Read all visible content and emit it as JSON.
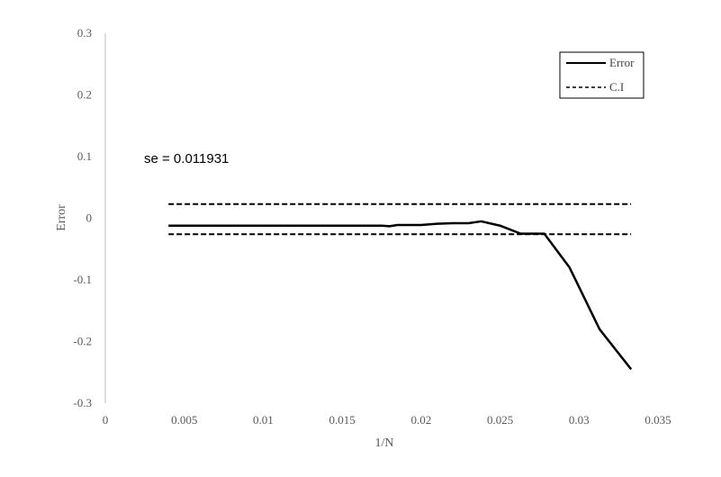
{
  "chart_data": {
    "type": "line",
    "xlabel": "1/N",
    "ylabel": "Error",
    "xlim": [
      0,
      0.035
    ],
    "ylim": [
      -0.3,
      0.3
    ],
    "x_ticks": [
      "0",
      "0.005",
      "0.01",
      "0.015",
      "0.02",
      "0.025",
      "0.03",
      "0.035"
    ],
    "y_ticks": [
      "-0.3",
      "-0.2",
      "-0.1",
      "0",
      "0.1",
      "0.2",
      "0.3"
    ],
    "grid": false,
    "legend_position": "top-right",
    "annotation": "se =  0.011931",
    "series": [
      {
        "name": "Error",
        "style": "solid",
        "color": "#000000",
        "x": [
          0.004,
          0.0175,
          0.018,
          0.0185,
          0.019,
          0.02,
          0.021,
          0.022,
          0.023,
          0.0238,
          0.025,
          0.0263,
          0.0278,
          0.0294,
          0.0313,
          0.0333
        ],
        "y": [
          -0.012,
          -0.012,
          -0.013,
          -0.011,
          -0.011,
          -0.011,
          -0.009,
          -0.008,
          -0.008,
          -0.005,
          -0.012,
          -0.025,
          -0.025,
          -0.08,
          -0.18,
          -0.245
        ]
      },
      {
        "name": "C.I",
        "style": "dashed",
        "color": "#000000",
        "upper": {
          "x": [
            0.004,
            0.0333
          ],
          "y": [
            0.023,
            0.023
          ]
        },
        "lower": {
          "x": [
            0.004,
            0.0333
          ],
          "y": [
            -0.026,
            -0.026
          ]
        }
      }
    ]
  }
}
